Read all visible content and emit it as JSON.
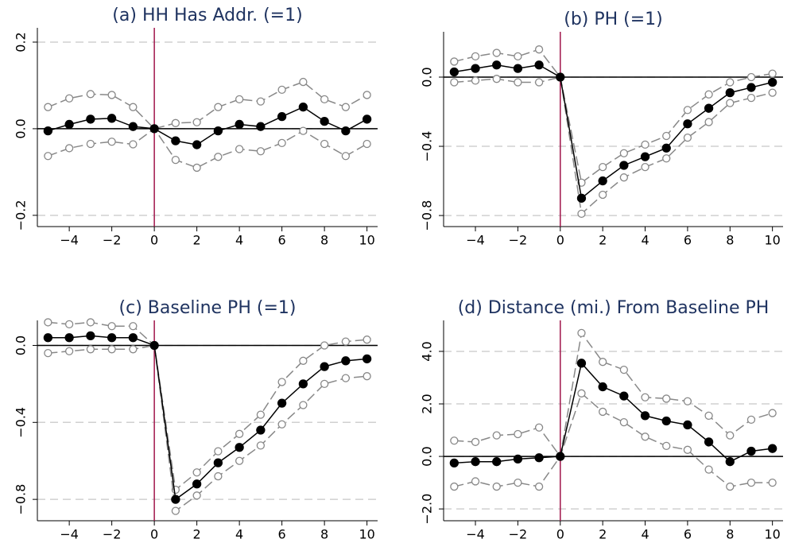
{
  "chart_data": [
    {
      "type": "line",
      "title": "(a) HH Has Addr. (=1)",
      "x": [
        -5,
        -4,
        -3,
        -2,
        -1,
        0,
        1,
        2,
        3,
        4,
        5,
        6,
        7,
        8,
        9,
        10
      ],
      "series": [
        {
          "color": "#888888",
          "dashed": true,
          "filled": false,
          "values": [
            0.05,
            0.07,
            0.08,
            0.078,
            0.05,
            0,
            0.013,
            0.015,
            0.05,
            0.068,
            0.063,
            0.09,
            0.108,
            0.068,
            0.05,
            0.078
          ]
        },
        {
          "color": "#888888",
          "dashed": true,
          "filled": false,
          "values": [
            -0.063,
            -0.045,
            -0.035,
            -0.03,
            -0.036,
            0,
            -0.072,
            -0.09,
            -0.065,
            -0.047,
            -0.052,
            -0.033,
            -0.005,
            -0.035,
            -0.063,
            -0.035
          ]
        },
        {
          "color": "#000000",
          "dashed": false,
          "filled": true,
          "values": [
            -0.005,
            0.01,
            0.022,
            0.024,
            0.005,
            0,
            -0.028,
            -0.037,
            -0.005,
            0.01,
            0.005,
            0.028,
            0.05,
            0.017,
            -0.005,
            0.022
          ]
        }
      ],
      "xlim": [
        -5.5,
        10.5
      ],
      "xticks": [
        {
          "value": -4,
          "label": "−4"
        },
        {
          "value": -2,
          "label": "−2"
        },
        0,
        2,
        4,
        6,
        8,
        10
      ],
      "ylim": [
        -0.226,
        0.233
      ],
      "yticks": [
        {
          "value": -0.2,
          "label": "−0.2"
        },
        {
          "value": 0,
          "label": "0.0"
        },
        0.2
      ],
      "grid": true,
      "hline": 0,
      "vline": 0,
      "vline_color": "#a0144a"
    },
    {
      "type": "line",
      "title": "(b) PH (=1)",
      "x": [
        -5,
        -4,
        -3,
        -2,
        -1,
        0,
        1,
        2,
        3,
        4,
        5,
        6,
        7,
        8,
        9,
        10
      ],
      "series": [
        {
          "color": "#888888",
          "dashed": true,
          "filled": false,
          "values": [
            0.09,
            0.12,
            0.14,
            0.12,
            0.16,
            0,
            -0.61,
            -0.52,
            -0.44,
            -0.39,
            -0.34,
            -0.19,
            -0.1,
            -0.03,
            0,
            0.02
          ]
        },
        {
          "color": "#888888",
          "dashed": true,
          "filled": false,
          "values": [
            -0.03,
            -0.02,
            -0.01,
            -0.03,
            -0.03,
            0,
            -0.79,
            -0.68,
            -0.58,
            -0.52,
            -0.47,
            -0.35,
            -0.26,
            -0.15,
            -0.12,
            -0.09
          ]
        },
        {
          "color": "#000000",
          "dashed": false,
          "filled": true,
          "values": [
            0.03,
            0.05,
            0.07,
            0.05,
            0.07,
            0,
            -0.7,
            -0.6,
            -0.51,
            -0.46,
            -0.41,
            -0.27,
            -0.18,
            -0.09,
            -0.06,
            -0.03
          ]
        }
      ],
      "xlim": [
        -5.5,
        10.5
      ],
      "xticks": [
        {
          "value": -4,
          "label": "−4"
        },
        {
          "value": -2,
          "label": "−2"
        },
        0,
        2,
        4,
        6,
        8,
        10
      ],
      "ylim": [
        -0.864,
        0.262
      ],
      "yticks": [
        {
          "value": -0.8,
          "label": "−0.8"
        },
        {
          "value": -0.4,
          "label": "−0.4"
        },
        {
          "value": 0,
          "label": "0.0"
        }
      ],
      "grid": true,
      "hline": 0,
      "vline": 0,
      "vline_color": "#a0144a"
    },
    {
      "type": "line",
      "title": "(c) Baseline PH (=1)",
      "x": [
        -5,
        -4,
        -3,
        -2,
        -1,
        0,
        1,
        2,
        3,
        4,
        5,
        6,
        7,
        8,
        9,
        10
      ],
      "series": [
        {
          "color": "#888888",
          "dashed": true,
          "filled": false,
          "values": [
            0.12,
            0.11,
            0.12,
            0.1,
            0.1,
            0,
            -0.75,
            -0.66,
            -0.55,
            -0.46,
            -0.36,
            -0.19,
            -0.08,
            0,
            0.02,
            0.03
          ]
        },
        {
          "color": "#888888",
          "dashed": true,
          "filled": false,
          "values": [
            -0.04,
            -0.03,
            -0.02,
            -0.02,
            -0.02,
            0,
            -0.86,
            -0.78,
            -0.68,
            -0.6,
            -0.52,
            -0.41,
            -0.31,
            -0.2,
            -0.17,
            -0.16
          ]
        },
        {
          "color": "#000000",
          "dashed": false,
          "filled": true,
          "values": [
            0.04,
            0.04,
            0.05,
            0.04,
            0.04,
            0,
            -0.8,
            -0.72,
            -0.61,
            -0.53,
            -0.44,
            -0.3,
            -0.2,
            -0.11,
            -0.08,
            -0.07
          ]
        }
      ],
      "xlim": [
        -5.5,
        10.5
      ],
      "xticks": [
        {
          "value": -4,
          "label": "−4"
        },
        {
          "value": -2,
          "label": "−2"
        },
        0,
        2,
        4,
        6,
        8,
        10
      ],
      "ylim": [
        -0.911,
        0.13
      ],
      "yticks": [
        {
          "value": -0.8,
          "label": "−0.8"
        },
        {
          "value": -0.4,
          "label": "−0.4"
        },
        {
          "value": 0,
          "label": "0.0"
        }
      ],
      "grid": true,
      "hline": 0,
      "vline": 0,
      "vline_color": "#a0144a"
    },
    {
      "type": "line",
      "title": "(d) Distance (mi.) From Baseline PH",
      "x": [
        -5,
        -4,
        -3,
        -2,
        -1,
        0,
        1,
        2,
        3,
        4,
        5,
        6,
        7,
        8,
        9,
        10
      ],
      "series": [
        {
          "color": "#888888",
          "dashed": true,
          "filled": false,
          "values": [
            0.6,
            0.55,
            0.8,
            0.85,
            1.1,
            0,
            4.7,
            3.6,
            3.3,
            2.25,
            2.2,
            2.1,
            1.55,
            0.8,
            1.4,
            1.65
          ]
        },
        {
          "color": "#888888",
          "dashed": true,
          "filled": false,
          "values": [
            -1.15,
            -0.95,
            -1.15,
            -1.0,
            -1.15,
            0,
            2.4,
            1.7,
            1.3,
            0.75,
            0.4,
            0.25,
            -0.5,
            -1.15,
            -1.0,
            -1.0
          ]
        },
        {
          "color": "#000000",
          "dashed": false,
          "filled": true,
          "values": [
            -0.25,
            -0.2,
            -0.2,
            -0.1,
            -0.05,
            0,
            3.55,
            2.65,
            2.3,
            1.55,
            1.35,
            1.2,
            0.55,
            -0.2,
            0.2,
            0.3
          ]
        }
      ],
      "xlim": [
        -5.5,
        10.5
      ],
      "xticks": [
        {
          "value": -4,
          "label": "−4"
        },
        {
          "value": -2,
          "label": "−2"
        },
        0,
        2,
        4,
        6,
        8,
        10
      ],
      "ylim": [
        -2.45,
        5.18
      ],
      "yticks": [
        {
          "value": -2,
          "label": "−2.0"
        },
        {
          "value": 0,
          "label": "0.0"
        },
        {
          "value": 2,
          "label": "2.0"
        },
        {
          "value": 4,
          "label": "4.0"
        }
      ],
      "grid": true,
      "hline": 0,
      "vline": 0,
      "vline_color": "#a0144a"
    }
  ]
}
